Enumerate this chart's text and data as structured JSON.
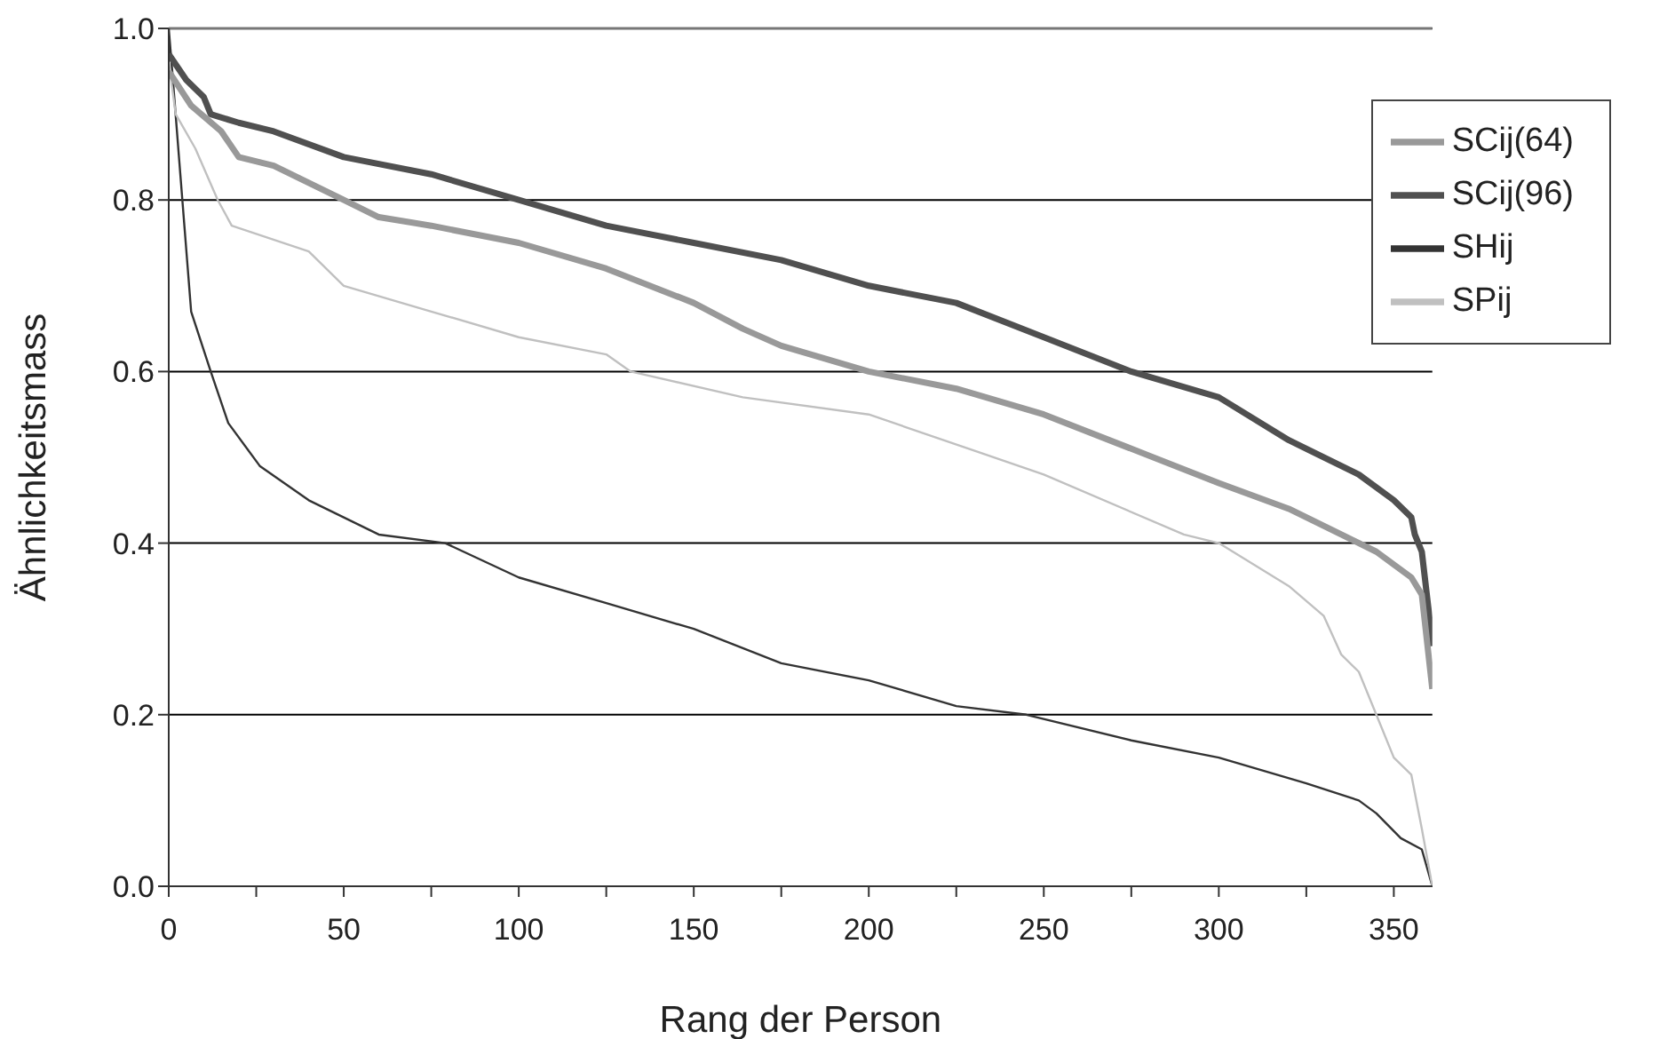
{
  "chart_data": {
    "type": "line",
    "xlabel": "Rang der Person",
    "ylabel": "Ähnlichkeitsmass",
    "xlim": [
      0,
      361
    ],
    "ylim": [
      0,
      1
    ],
    "xticks": [
      0,
      {
        "value": 25,
        "label": null
      },
      50,
      {
        "value": 75,
        "label": null
      },
      100,
      {
        "value": 125,
        "label": null
      },
      150,
      {
        "value": 175,
        "label": null
      },
      200,
      {
        "value": 225,
        "label": null
      },
      250,
      {
        "value": 275,
        "label": null
      },
      300,
      {
        "value": 325,
        "label": null
      },
      350
    ],
    "yticks": [
      {
        "value": 0,
        "label": "0.0"
      },
      {
        "value": 0.2,
        "label": "0.2"
      },
      {
        "value": 0.4,
        "label": "0.4"
      },
      {
        "value": 0.6,
        "label": "0.6"
      },
      {
        "value": 0.8,
        "label": "0.8"
      },
      {
        "value": 1,
        "label": "1.0"
      }
    ],
    "grid": "y",
    "legend": "top right",
    "marker": "none",
    "line_style": "solid",
    "series": [
      {
        "name": "SHij",
        "color": "#333333",
        "x": [
          0,
          1,
          3.5,
          6.4,
          12,
          17,
          26,
          40,
          60,
          79,
          100,
          125,
          150,
          175,
          200,
          225,
          245,
          275,
          300,
          325,
          340,
          345,
          352,
          358,
          361
        ],
        "values": [
          1.0,
          0.95,
          0.82,
          0.67,
          0.6,
          0.54,
          0.49,
          0.45,
          0.41,
          0.4,
          0.36,
          0.33,
          0.3,
          0.26,
          0.24,
          0.21,
          0.2,
          0.17,
          0.15,
          0.12,
          0.1,
          0.085,
          0.056,
          0.043,
          0
        ]
      },
      {
        "name": "SPij",
        "color": "#c0c0c0",
        "x": [
          0,
          2,
          7.6,
          14,
          18,
          40,
          50,
          75,
          100,
          125,
          132,
          164,
          200,
          250,
          290,
          300,
          320,
          330,
          335,
          340,
          345,
          350,
          355,
          358,
          361
        ],
        "values": [
          0.96,
          0.9,
          0.86,
          0.8,
          0.77,
          0.74,
          0.7,
          0.67,
          0.64,
          0.62,
          0.6,
          0.57,
          0.55,
          0.48,
          0.41,
          0.4,
          0.35,
          0.315,
          0.27,
          0.25,
          0.2,
          0.15,
          0.13,
          0.067,
          0
        ]
      },
      {
        "name": "SCij(96)",
        "color": "#505050",
        "x": [
          0,
          5,
          10,
          12,
          20,
          30,
          50,
          75,
          100,
          125,
          150,
          175,
          200,
          225,
          250,
          275,
          300,
          320,
          340,
          350,
          355,
          356,
          358,
          360,
          361
        ],
        "values": [
          0.97,
          0.94,
          0.92,
          0.9,
          0.89,
          0.88,
          0.85,
          0.83,
          0.8,
          0.77,
          0.75,
          0.73,
          0.7,
          0.68,
          0.64,
          0.6,
          0.57,
          0.52,
          0.48,
          0.45,
          0.43,
          0.41,
          0.39,
          0.32,
          0.28
        ]
      },
      {
        "name": "SCij(64)",
        "color": "#999999",
        "x": [
          0,
          6.4,
          15,
          20,
          30,
          50,
          60,
          75,
          100,
          125,
          150,
          164,
          175,
          200,
          225,
          250,
          275,
          300,
          320,
          335,
          345,
          355,
          358,
          361
        ],
        "values": [
          0.95,
          0.91,
          0.88,
          0.85,
          0.84,
          0.8,
          0.78,
          0.77,
          0.75,
          0.72,
          0.68,
          0.65,
          0.63,
          0.6,
          0.58,
          0.55,
          0.51,
          0.47,
          0.44,
          0.41,
          0.39,
          0.36,
          0.34,
          0.23
        ]
      }
    ]
  }
}
